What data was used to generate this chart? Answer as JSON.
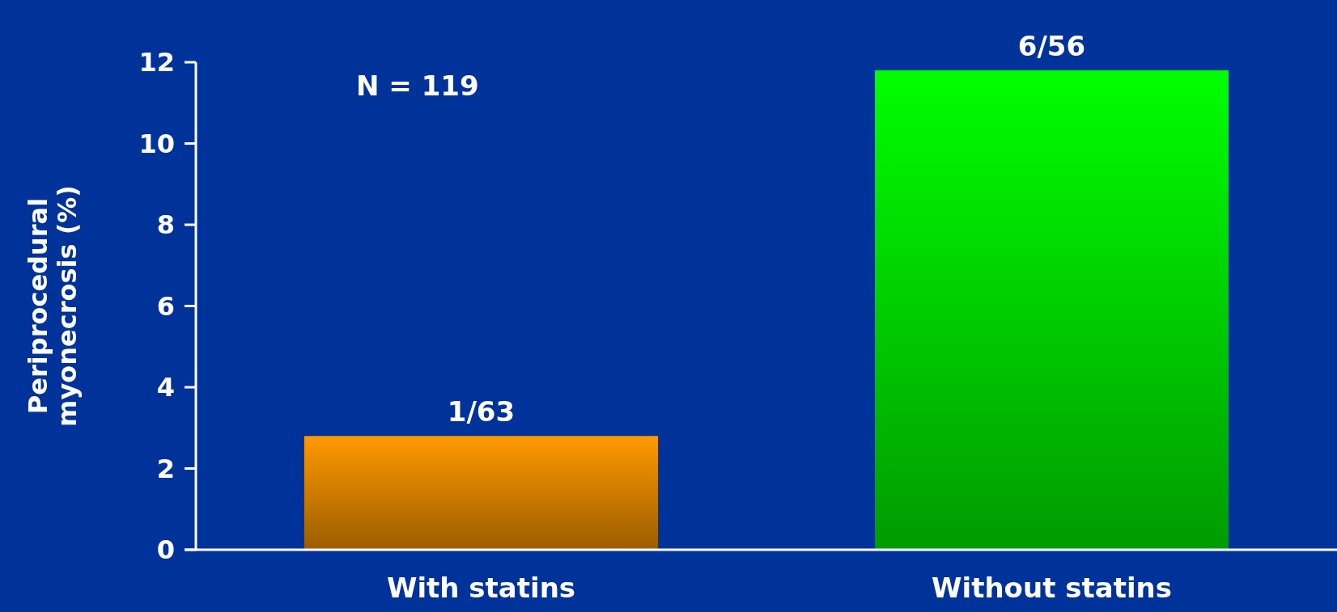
{
  "chart_data": {
    "type": "bar",
    "ylabel": "Periprocedural\nmyonecrosis (%)",
    "categories": [
      "With statins",
      "Without statins"
    ],
    "values": [
      2.8,
      11.8
    ],
    "colors": [
      "#ff9900",
      "#00ff00"
    ],
    "value_labels": [
      "1/63",
      "6/56"
    ],
    "ylim": [
      0,
      12
    ],
    "yticks": [
      0,
      2,
      4,
      6,
      8,
      10,
      12
    ],
    "grid": false,
    "annotations": [
      "N = 119"
    ]
  }
}
